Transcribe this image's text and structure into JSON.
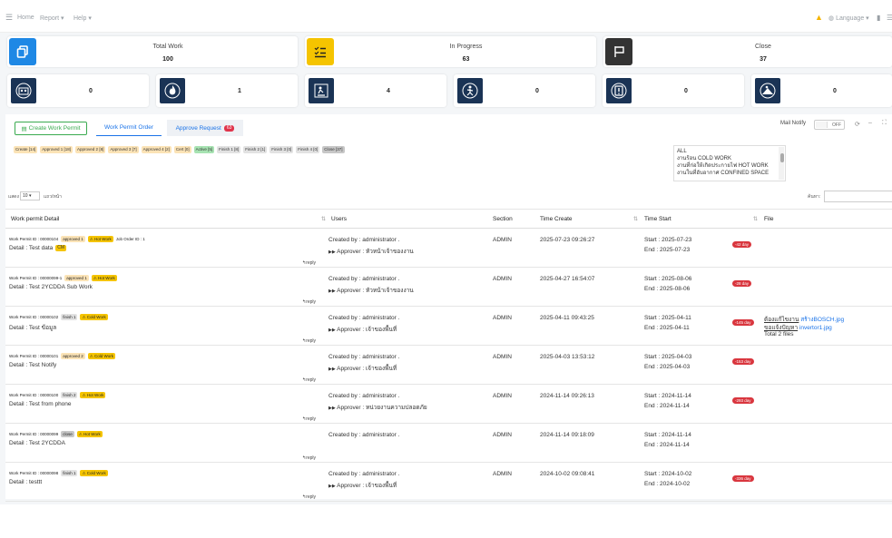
{
  "nav": {
    "home": "Home",
    "report": "Report",
    "help": "Help",
    "language": "Language"
  },
  "summary": [
    {
      "title": "Total Work",
      "value": "100",
      "color": "#1e88e5"
    },
    {
      "title": "In Progress",
      "value": "63",
      "color": "#f5c400"
    },
    {
      "title": "Close",
      "value": "37",
      "color": "#333333"
    }
  ],
  "types": [
    {
      "value": "0"
    },
    {
      "value": "1"
    },
    {
      "value": "4"
    },
    {
      "value": "0"
    },
    {
      "value": "0"
    },
    {
      "value": "0"
    }
  ],
  "toolbar": {
    "create": "Create Work Permit",
    "tab_order": "Work Permit Order",
    "tab_approve": "Approve Request",
    "approve_count": "63",
    "mail_notify": "Mail Notify",
    "toggle": "OFF"
  },
  "statuses": [
    {
      "label": "Create [14]",
      "bg": "#fbe3b6"
    },
    {
      "label": "Approved 1 [18]",
      "bg": "#fbe3b6"
    },
    {
      "label": "Approved 2 [8]",
      "bg": "#fbe3b6"
    },
    {
      "label": "Approved 3 [7]",
      "bg": "#fbe3b6"
    },
    {
      "label": "Approved 4 [2]",
      "bg": "#fbe3b6"
    },
    {
      "label": "Cert [0]",
      "bg": "#fbe3b6"
    },
    {
      "label": "Active [5]",
      "bg": "#a7e3b2"
    },
    {
      "label": "Finish 1 [8]",
      "bg": "#e2e2e2"
    },
    {
      "label": "Finish 2 [1]",
      "bg": "#e2e2e2"
    },
    {
      "label": "Finish 3 [0]",
      "bg": "#e2e2e2"
    },
    {
      "label": "Finish 4 [0]",
      "bg": "#e2e2e2"
    },
    {
      "label": "Close [37]",
      "bg": "#c7c7c7"
    }
  ],
  "worktypes": [
    "ALL",
    "งานร้อน COLD WORK",
    "งานที่ก่อให้เกิดประกายไฟ HOT WORK",
    "งานในที่อับอากาศ CONFINED SPACE"
  ],
  "table_ctl": {
    "show": "แสดง",
    "page_size": "10",
    "per_page": "แถว/หน้า",
    "search": "ค้นหา:"
  },
  "headers": {
    "detail": "Work permit Detail",
    "users": "Users",
    "section": "Section",
    "time_create": "Time Create",
    "time_start": "Time Start",
    "file": "File"
  },
  "rows": [
    {
      "wp_id": "Work Permit ID : 00000104",
      "status": "approved 1",
      "status_bg": "#fbe3b6",
      "type": "Hot Work",
      "extra": "Job Order ID : 1",
      "detail": "Detail : Test data",
      "detail_tag": "CM",
      "reply": "reply",
      "created_by": "Created by : administrator .",
      "approver": "Approver : หัวหน้าเจ้าของงาน",
      "section": "ADMIN",
      "time_create": "2025-07-23 09:26:27",
      "start": "Start : 2025-07-23",
      "end": "End : 2025-07-23",
      "days": "-42 day",
      "file1": "",
      "file1_link": "",
      "file2": "",
      "file2_link": "",
      "files_total": ""
    },
    {
      "wp_id": "Work Permit ID : 00000099-1",
      "status": "approved 1",
      "status_bg": "#fbe3b6",
      "type": "Hot Work",
      "extra": "",
      "detail": "Detail : Test 2YCDDA Sub Work",
      "detail_tag": "",
      "reply": "reply",
      "created_by": "Created by : administrator .",
      "approver": "Approver : หัวหน้าเจ้าของงาน",
      "section": "ADMIN",
      "time_create": "2025-04-27 16:54:07",
      "start": "Start : 2025-08-06",
      "end": "End : 2025-08-06",
      "days": "-28 day",
      "file1": "",
      "file1_link": "",
      "file2": "",
      "file2_link": "",
      "files_total": ""
    },
    {
      "wp_id": "Work Permit ID : 00000102",
      "status": "finish 1",
      "status_bg": "#e2e2e2",
      "type": "Cold Work",
      "extra": "",
      "detail": "Detail : Test ข้อมูล",
      "detail_tag": "",
      "reply": "reply",
      "created_by": "Created by : administrator .",
      "approver": "Approver : เจ้าของพื้นที่",
      "section": "ADMIN",
      "time_create": "2025-04-11 09:43:25",
      "start": "Start : 2025-04-11",
      "end": "End : 2025-04-11",
      "days": "-145 day",
      "file1": "ต้องแก้ไขงาน",
      "file1_link": "สร้างBOSCH.jpg",
      "file2": "ขอแจ้งปัญหา",
      "file2_link": "invertor1.jpg",
      "files_total": "Total 2 files"
    },
    {
      "wp_id": "Work Permit ID : 00000101",
      "status": "approved 2",
      "status_bg": "#fbe3b6",
      "type": "Cold Work",
      "extra": "",
      "detail": "Detail : Test Notify",
      "detail_tag": "",
      "reply": "reply",
      "created_by": "Created by : administrator .",
      "approver": "Approver : เจ้าของพื้นที่",
      "section": "ADMIN",
      "time_create": "2025-04-03 13:53:12",
      "start": "Start : 2025-04-03",
      "end": "End : 2025-04-03",
      "days": "-153 day",
      "file1": "",
      "file1_link": "",
      "file2": "",
      "file2_link": "",
      "files_total": ""
    },
    {
      "wp_id": "Work Permit ID : 00000100",
      "status": "finish 2",
      "status_bg": "#e2e2e2",
      "type": "Hot Work",
      "extra": "",
      "detail": "Detail : Test from phone",
      "detail_tag": "",
      "reply": "reply",
      "created_by": "Created by : administrator .",
      "approver": "Approver : หน่วยงานความปลอดภัย",
      "section": "ADMIN",
      "time_create": "2024-11-14 09:26:13",
      "start": "Start : 2024-11-14",
      "end": "End : 2024-11-14",
      "days": "-293 day",
      "file1": "",
      "file1_link": "",
      "file2": "",
      "file2_link": "",
      "files_total": ""
    },
    {
      "wp_id": "Work Permit ID : 00000099",
      "status": "close",
      "status_bg": "#c7c7c7",
      "type": "Hot Work",
      "extra": "",
      "detail": "Detail : Test 2YCDDA",
      "detail_tag": "",
      "reply": "reply",
      "created_by": "Created by : administrator .",
      "approver": "",
      "section": "ADMIN",
      "time_create": "2024-11-14 09:18:09",
      "start": "Start : 2024-11-14",
      "end": "End : 2024-11-14",
      "days": "",
      "file1": "",
      "file1_link": "",
      "file2": "",
      "file2_link": "",
      "files_total": ""
    },
    {
      "wp_id": "Work Permit ID : 00000098",
      "status": "finish 1",
      "status_bg": "#e2e2e2",
      "type": "Cold Work",
      "extra": "",
      "detail": "Detail : testtt",
      "detail_tag": "",
      "reply": "reply",
      "created_by": "Created by : administrator .",
      "approver": "Approver : เจ้าของพื้นที่",
      "section": "ADMIN",
      "time_create": "2024-10-02 09:08:41",
      "start": "Start : 2024-10-02",
      "end": "End : 2024-10-02",
      "days": "-336 day",
      "file1": "",
      "file1_link": "",
      "file2": "",
      "file2_link": "",
      "files_total": ""
    }
  ]
}
